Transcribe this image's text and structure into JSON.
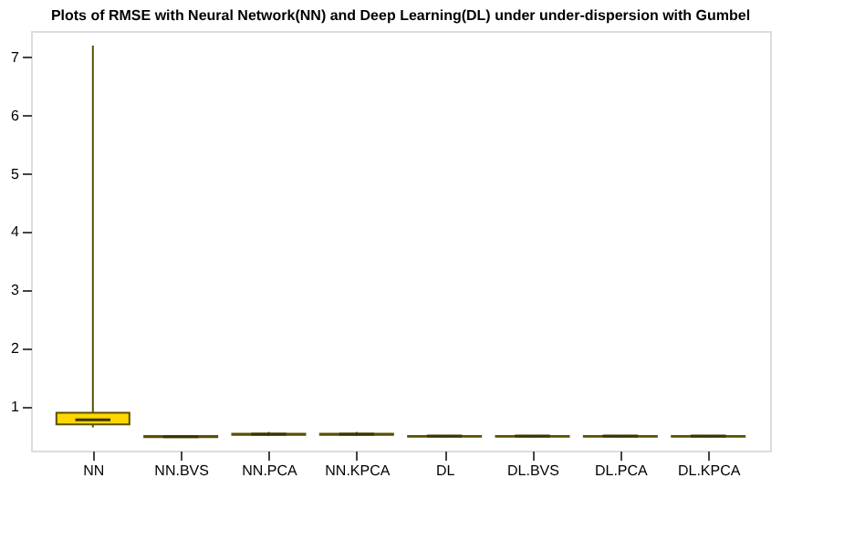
{
  "chart_data": {
    "type": "box",
    "title": "Plots of RMSE with Neural Network(NN) and Deep Learning(DL) under under-dispersion with Gumbel",
    "categories": [
      "NN",
      "NN.BVS",
      "NN.PCA",
      "NN.KPCA",
      "DL",
      "DL.BVS",
      "DL.PCA",
      "DL.KPCA"
    ],
    "color": "#ffd700",
    "boxes": [
      {
        "low": 0.65,
        "q1": 0.7,
        "median": 0.78,
        "q3": 0.9,
        "high": 7.2
      },
      {
        "low": 0.47,
        "q1": 0.48,
        "median": 0.49,
        "q3": 0.5,
        "high": 0.51
      },
      {
        "low": 0.5,
        "q1": 0.52,
        "median": 0.53,
        "q3": 0.54,
        "high": 0.57
      },
      {
        "low": 0.5,
        "q1": 0.52,
        "median": 0.53,
        "q3": 0.54,
        "high": 0.57
      },
      {
        "low": 0.48,
        "q1": 0.49,
        "median": 0.5,
        "q3": 0.5,
        "high": 0.51
      },
      {
        "low": 0.48,
        "q1": 0.49,
        "median": 0.5,
        "q3": 0.5,
        "high": 0.51
      },
      {
        "low": 0.48,
        "q1": 0.49,
        "median": 0.5,
        "q3": 0.5,
        "high": 0.51
      },
      {
        "low": 0.48,
        "q1": 0.49,
        "median": 0.5,
        "q3": 0.5,
        "high": 0.51
      }
    ],
    "ylim": [
      0.25,
      7.45
    ],
    "yticks": [
      1,
      2,
      3,
      4,
      5,
      6,
      7
    ],
    "grid": false
  }
}
